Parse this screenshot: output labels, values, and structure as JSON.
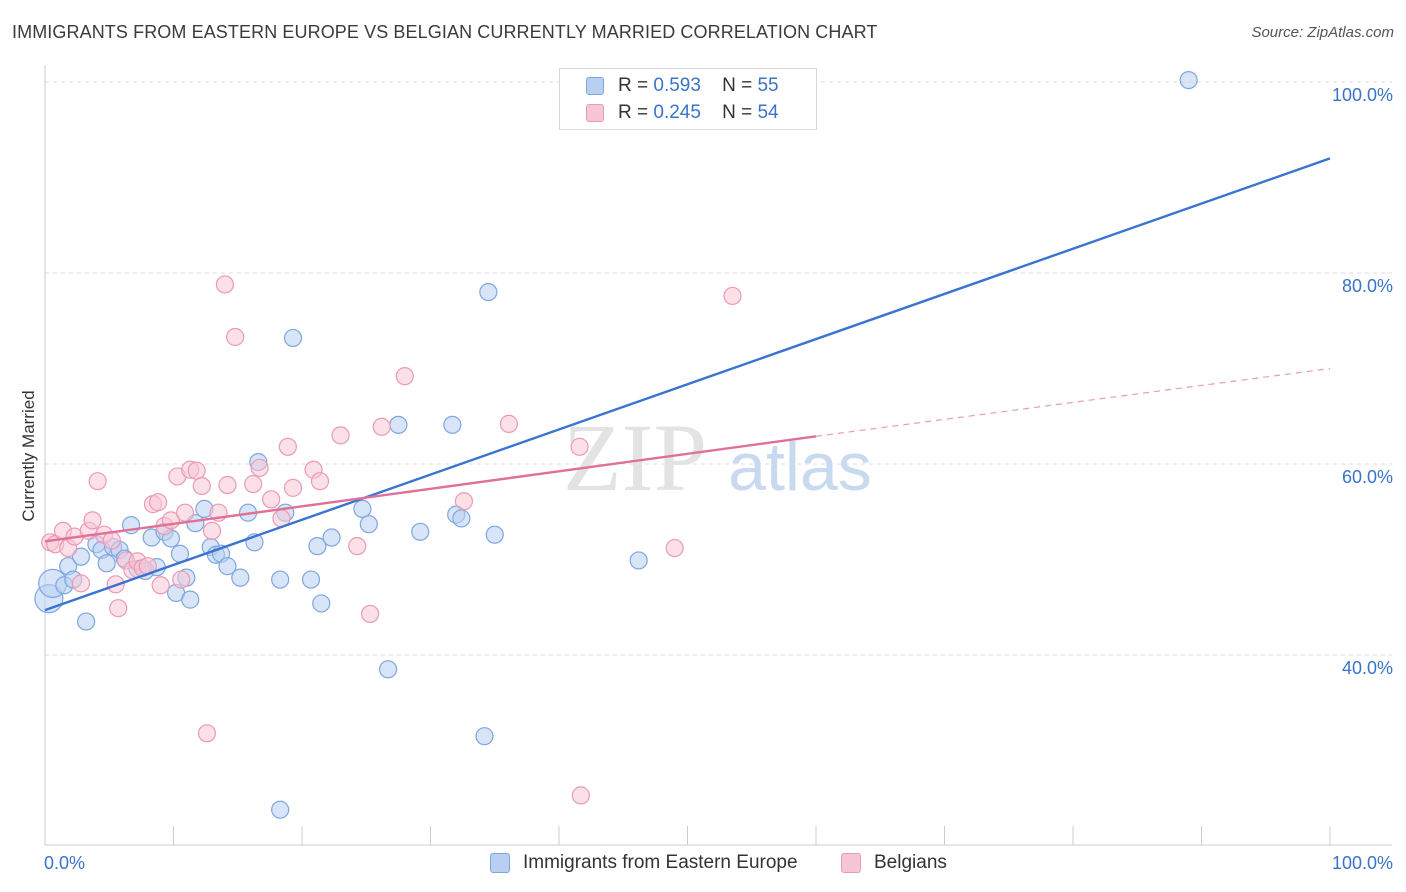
{
  "header": {
    "title": "IMMIGRANTS FROM EASTERN EUROPE VS BELGIAN CURRENTLY MARRIED CORRELATION CHART",
    "source": "Source: ZipAtlas.com"
  },
  "legend_top": {
    "rows": [
      {
        "r_label": "R =",
        "r_value": "0.593",
        "n_label": "N =",
        "n_value": "55"
      },
      {
        "r_label": "R =",
        "r_value": "0.245",
        "n_label": "N =",
        "n_value": "54"
      }
    ]
  },
  "legend_bottom": {
    "items": [
      "Immigrants from Eastern Europe",
      "Belgians"
    ]
  },
  "colors": {
    "blue_line": "#3a73d0",
    "blue_fill": "#b8cff2",
    "blue_stroke": "#7ea6e0",
    "pink_line": "#e07098",
    "pink_fill": "#f7c6d6",
    "pink_stroke": "#eb9ab5",
    "axis_text": "#3a73c9",
    "grid": "#dddddd"
  },
  "watermark": {
    "zip": "ZIP",
    "atlas": "atlas"
  },
  "chart_data": {
    "type": "scatter",
    "title": "IMMIGRANTS FROM EASTERN EUROPE VS BELGIAN CURRENTLY MARRIED CORRELATION CHART",
    "xlabel": "",
    "ylabel": "Currently Married",
    "xlim": [
      0,
      100
    ],
    "ylim": [
      22,
      102
    ],
    "x_tick_labels": [
      "0.0%",
      "100.0%"
    ],
    "y_ticks": [
      40,
      60,
      80,
      100
    ],
    "y_tick_labels": [
      "40.0%",
      "60.0%",
      "80.0%",
      "100.0%"
    ],
    "grid": true,
    "series": [
      {
        "name": "Immigrants from Eastern Europe",
        "color": "blue",
        "R": 0.593,
        "N": 55,
        "trend": {
          "x0": 0,
          "y0": 44.7,
          "x1": 100,
          "y1": 92.0
        },
        "points": [
          [
            0.3,
            45.9,
            "L"
          ],
          [
            0.6,
            47.5,
            "L"
          ],
          [
            1.5,
            47.3
          ],
          [
            1.8,
            49.3
          ],
          [
            2.2,
            47.9
          ],
          [
            2.8,
            50.3
          ],
          [
            3.2,
            43.5
          ],
          [
            4.0,
            51.6
          ],
          [
            4.4,
            51.0
          ],
          [
            4.8,
            49.6
          ],
          [
            5.3,
            51.3
          ],
          [
            5.8,
            51.0
          ],
          [
            6.2,
            50.1
          ],
          [
            6.7,
            53.6
          ],
          [
            7.2,
            49.0
          ],
          [
            7.8,
            48.8
          ],
          [
            8.3,
            52.3
          ],
          [
            8.7,
            49.2
          ],
          [
            9.3,
            52.9
          ],
          [
            9.8,
            52.2
          ],
          [
            10.2,
            46.5
          ],
          [
            10.5,
            50.6
          ],
          [
            11.0,
            48.1
          ],
          [
            11.3,
            45.8
          ],
          [
            11.7,
            53.8
          ],
          [
            12.4,
            55.3
          ],
          [
            12.9,
            51.3
          ],
          [
            13.3,
            50.5
          ],
          [
            13.7,
            50.6
          ],
          [
            14.2,
            49.3
          ],
          [
            15.2,
            48.1
          ],
          [
            15.8,
            54.9
          ],
          [
            16.3,
            51.8
          ],
          [
            16.6,
            60.2
          ],
          [
            18.3,
            47.9
          ],
          [
            18.7,
            54.9
          ],
          [
            19.3,
            73.2
          ],
          [
            20.7,
            47.9
          ],
          [
            21.2,
            51.4
          ],
          [
            21.5,
            45.4
          ],
          [
            22.3,
            52.3
          ],
          [
            24.7,
            55.3
          ],
          [
            25.2,
            53.7
          ],
          [
            26.7,
            38.5
          ],
          [
            27.5,
            64.1
          ],
          [
            29.2,
            52.9
          ],
          [
            31.7,
            64.1
          ],
          [
            32.0,
            54.7
          ],
          [
            32.4,
            54.3
          ],
          [
            34.2,
            31.5
          ],
          [
            34.5,
            78.0
          ],
          [
            35.0,
            52.6
          ],
          [
            46.2,
            49.9
          ],
          [
            89.0,
            100.2
          ],
          [
            18.3,
            23.8
          ]
        ]
      },
      {
        "name": "Belgians",
        "color": "pink",
        "R": 0.245,
        "N": 54,
        "trend": {
          "x0": 0,
          "y0": 51.9,
          "x1": 60,
          "y1": 62.9,
          "dash_x1": 100,
          "dash_y1": 70.0
        },
        "points": [
          [
            0.4,
            51.8
          ],
          [
            0.8,
            51.6
          ],
          [
            1.4,
            53.0
          ],
          [
            1.8,
            51.2
          ],
          [
            2.3,
            52.4
          ],
          [
            2.8,
            47.5
          ],
          [
            3.4,
            53.0
          ],
          [
            3.7,
            54.1
          ],
          [
            4.1,
            58.2
          ],
          [
            4.6,
            52.6
          ],
          [
            5.2,
            52.0
          ],
          [
            5.5,
            47.4
          ],
          [
            5.7,
            44.9
          ],
          [
            6.3,
            49.9
          ],
          [
            6.8,
            48.9
          ],
          [
            7.2,
            49.8
          ],
          [
            7.6,
            49.1
          ],
          [
            8.0,
            49.3
          ],
          [
            8.4,
            55.8
          ],
          [
            8.8,
            56.0
          ],
          [
            9.0,
            47.3
          ],
          [
            9.3,
            53.5
          ],
          [
            9.8,
            54.1
          ],
          [
            10.3,
            58.7
          ],
          [
            10.6,
            47.9
          ],
          [
            10.9,
            54.9
          ],
          [
            11.3,
            59.4
          ],
          [
            11.8,
            59.3
          ],
          [
            12.2,
            57.7
          ],
          [
            12.6,
            31.8
          ],
          [
            13.0,
            53.0
          ],
          [
            13.5,
            54.9
          ],
          [
            14.0,
            78.8
          ],
          [
            14.2,
            57.8
          ],
          [
            14.8,
            73.3
          ],
          [
            16.2,
            57.9
          ],
          [
            16.7,
            59.6
          ],
          [
            17.6,
            56.3
          ],
          [
            18.4,
            54.3
          ],
          [
            18.9,
            61.8
          ],
          [
            19.3,
            57.5
          ],
          [
            20.9,
            59.4
          ],
          [
            21.4,
            58.2
          ],
          [
            23.0,
            63.0
          ],
          [
            24.3,
            51.4
          ],
          [
            25.3,
            44.3
          ],
          [
            26.2,
            63.9
          ],
          [
            28.0,
            69.2
          ],
          [
            36.1,
            64.2
          ],
          [
            41.6,
            61.8
          ],
          [
            41.7,
            25.3
          ],
          [
            49.0,
            51.2
          ],
          [
            53.5,
            77.6
          ],
          [
            32.6,
            56.1
          ]
        ]
      }
    ]
  }
}
